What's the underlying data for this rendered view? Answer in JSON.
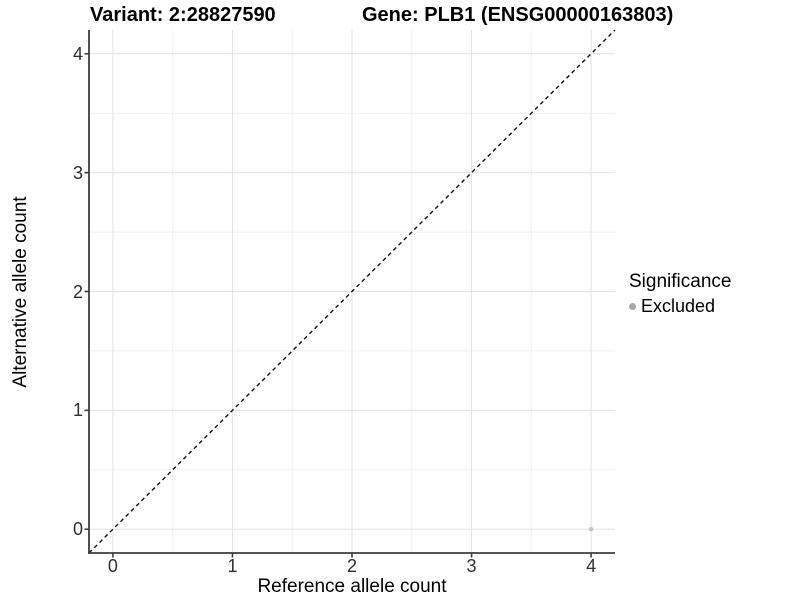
{
  "titles": {
    "variant": "Variant: 2:28827590",
    "gene": "Gene: PLB1 (ENSG00000163803)"
  },
  "chart_data": {
    "type": "scatter",
    "xlabel": "Reference allele count",
    "ylabel": "Alternative allele count",
    "xlim": [
      -0.2,
      4.2
    ],
    "ylim": [
      -0.2,
      4.2
    ],
    "x_ticks": [
      0,
      1,
      2,
      3,
      4
    ],
    "y_ticks": [
      0,
      1,
      2,
      3,
      4
    ],
    "minor_ticks": [
      0.5,
      1.5,
      2.5,
      3.5
    ],
    "grid": true,
    "series": [
      {
        "name": "Excluded",
        "points": [
          {
            "x": 4,
            "y": 0
          }
        ],
        "color": "#c3c3c3"
      }
    ],
    "reference_line": {
      "kind": "identity",
      "style": "dashed",
      "color": "#111111"
    },
    "legend": {
      "title": "Significance",
      "position": "right",
      "items": [
        {
          "label": "Excluded",
          "color": "#a6a6a6"
        }
      ]
    }
  },
  "colors": {
    "background": "#ffffff",
    "grid_major": "#e3e3e3",
    "grid_minor": "#f1f1f1",
    "axis_line": "#3d3d3d",
    "tick_text": "#303030",
    "point": "#c3c3c3",
    "legend_key": "#a6a6a6",
    "identity_line": "#111111"
  }
}
